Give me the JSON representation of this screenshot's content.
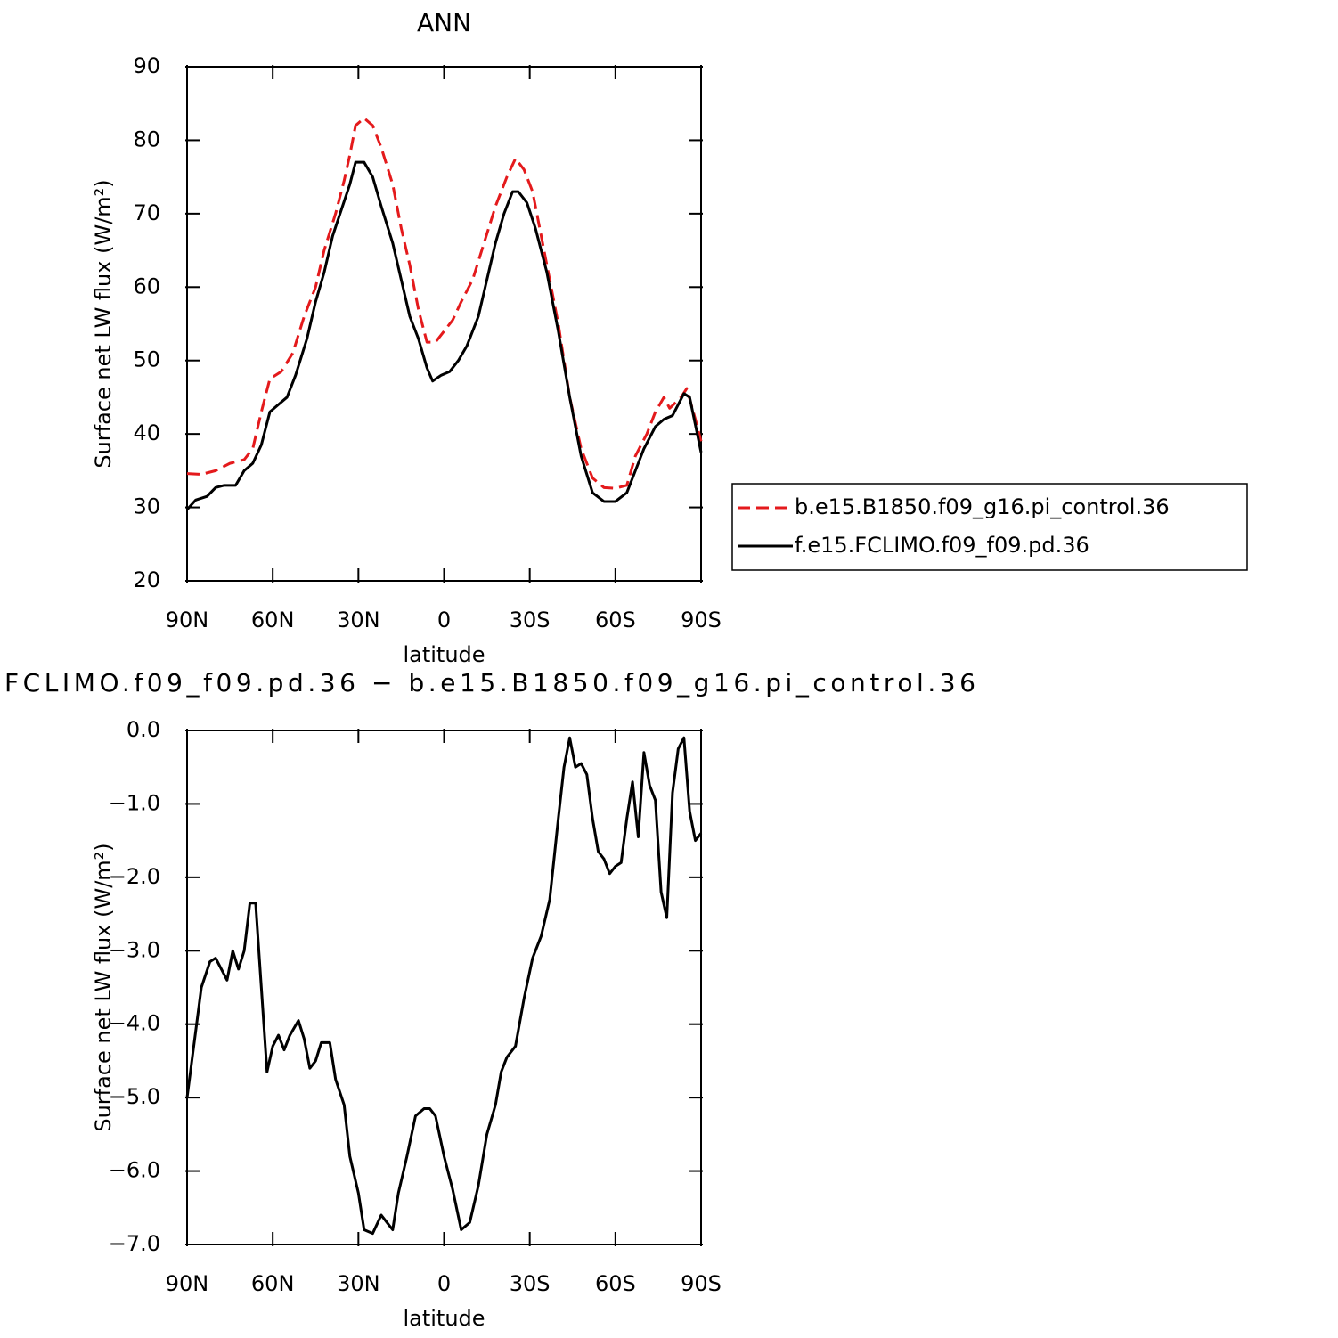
{
  "chart_data": [
    {
      "type": "line",
      "title": "ANN",
      "xlabel": "latitude",
      "ylabel": "Surface net LW flux (W/m²)",
      "xlim": [
        90,
        -90
      ],
      "xticks": [
        {
          "value": 90,
          "label": "90N"
        },
        {
          "value": 60,
          "label": "60N"
        },
        {
          "value": 30,
          "label": "30N"
        },
        0,
        {
          "value": -30,
          "label": "30S"
        },
        {
          "value": -60,
          "label": "60S"
        },
        {
          "value": -90,
          "label": "90S"
        }
      ],
      "ylim": [
        20,
        90
      ],
      "yticks": [
        20,
        30,
        40,
        50,
        60,
        70,
        80,
        90
      ],
      "legend": "right",
      "series": [
        {
          "name": "b.e15.B1850.f09_g16.pi_control.36",
          "color": "#e41a1c",
          "style": "dashed",
          "x": [
            90,
            85,
            80,
            75,
            70,
            67,
            64,
            61,
            57,
            53,
            49,
            45,
            42,
            38,
            35,
            33,
            31,
            28,
            25,
            22,
            18,
            15,
            12,
            9,
            6,
            3,
            0,
            -3,
            -6,
            -10,
            -14,
            -18,
            -22,
            -25,
            -28,
            -31,
            -35,
            -40,
            -44,
            -48,
            -52,
            -56,
            -60,
            -64,
            -67,
            -71,
            -74,
            -77,
            -79,
            -83,
            -85,
            -88,
            -90
          ],
          "values": [
            34.6,
            34.5,
            35,
            36,
            36.5,
            38,
            43,
            47.5,
            48.5,
            51,
            56,
            60,
            65,
            70,
            74.5,
            78,
            82,
            83,
            82,
            79,
            74,
            68,
            63,
            57,
            52.5,
            52.5,
            54,
            55.5,
            58,
            61,
            66,
            71,
            75,
            77.5,
            76,
            73,
            65,
            55,
            45,
            38,
            34,
            32.7,
            32.6,
            33,
            37,
            40,
            43,
            45,
            43.5,
            45,
            46.2,
            42,
            39
          ]
        },
        {
          "name": "f.e15.FCLIMO.f09_f09.pd.36",
          "color": "#000000",
          "style": "solid",
          "x": [
            90,
            87,
            83,
            80,
            77,
            73,
            70,
            67,
            64,
            61,
            58,
            55,
            52,
            48,
            45,
            42,
            39,
            36,
            33,
            31,
            28,
            25,
            22,
            18,
            15,
            12,
            9,
            6,
            4,
            1,
            -2,
            -5,
            -8,
            -12,
            -15,
            -18,
            -21,
            -24,
            -26,
            -29,
            -32,
            -36,
            -40,
            -44,
            -48,
            -52,
            -56,
            -60,
            -64,
            -67,
            -70,
            -74,
            -77,
            -80,
            -84,
            -86,
            -90
          ],
          "values": [
            29.7,
            31,
            31.5,
            32.7,
            33,
            33,
            35,
            36,
            38.5,
            43,
            44,
            45,
            48,
            53,
            58,
            62,
            67,
            70.5,
            74,
            77,
            77,
            75,
            71,
            66,
            61,
            56,
            53,
            49,
            47.2,
            48,
            48.5,
            50,
            52,
            56,
            61,
            66,
            70,
            73,
            73,
            71.5,
            68,
            62,
            54,
            45,
            37,
            32,
            30.8,
            30.8,
            32,
            35,
            38,
            41,
            42,
            42.5,
            45.5,
            45,
            37.5
          ]
        }
      ]
    },
    {
      "type": "line",
      "title": "FCLIMO.f09_f09.pd.36 − b.e15.B1850.f09_g16.pi_control.36",
      "xlabel": "latitude",
      "ylabel": "Surface net LW flux (W/m²)",
      "xlim": [
        90,
        -90
      ],
      "xticks": [
        {
          "value": 90,
          "label": "90N"
        },
        {
          "value": 60,
          "label": "60N"
        },
        {
          "value": 30,
          "label": "30N"
        },
        0,
        {
          "value": -30,
          "label": "30S"
        },
        {
          "value": -60,
          "label": "60S"
        },
        {
          "value": -90,
          "label": "90S"
        }
      ],
      "ylim": [
        -7,
        0
      ],
      "yticks": [
        {
          "value": -7,
          "label": "−7.0"
        },
        {
          "value": -6,
          "label": "−6.0"
        },
        {
          "value": -5,
          "label": "−5.0"
        },
        {
          "value": -4,
          "label": "−4.0"
        },
        {
          "value": -3,
          "label": "−3.0"
        },
        {
          "value": -2,
          "label": "−2.0"
        },
        {
          "value": -1,
          "label": "−1.0"
        },
        {
          "value": 0,
          "label": "0.0"
        }
      ],
      "series": [
        {
          "color": "#000000",
          "style": "solid",
          "x": [
            90,
            88,
            85,
            82,
            80,
            78,
            76,
            74,
            72,
            70,
            68,
            66,
            64,
            62,
            60,
            58,
            56,
            54,
            51,
            49,
            47,
            45,
            43,
            40,
            38,
            35,
            33,
            30,
            28,
            25,
            22,
            20,
            18,
            16,
            13,
            10,
            7,
            5,
            3,
            0,
            -3,
            -6,
            -9,
            -12,
            -15,
            -18,
            -20,
            -22,
            -25,
            -28,
            -31,
            -34,
            -37,
            -40,
            -42,
            -44,
            -46,
            -48,
            -50,
            -52,
            -54,
            -56,
            -58,
            -60,
            -62,
            -64,
            -66,
            -68,
            -70,
            -72,
            -74,
            -76,
            -78,
            -80,
            -82,
            -84,
            -86,
            -88,
            -90
          ],
          "values": [
            -5.0,
            -4.4,
            -3.5,
            -3.15,
            -3.1,
            -3.25,
            -3.4,
            -3.0,
            -3.25,
            -3.0,
            -2.35,
            -2.35,
            -3.5,
            -4.65,
            -4.3,
            -4.15,
            -4.35,
            -4.15,
            -3.95,
            -4.2,
            -4.6,
            -4.5,
            -4.25,
            -4.25,
            -4.75,
            -5.1,
            -5.8,
            -6.3,
            -6.8,
            -6.85,
            -6.6,
            -6.7,
            -6.8,
            -6.3,
            -5.8,
            -5.25,
            -5.15,
            -5.15,
            -5.25,
            -5.8,
            -6.25,
            -6.8,
            -6.7,
            -6.2,
            -5.5,
            -5.1,
            -4.65,
            -4.45,
            -4.3,
            -3.65,
            -3.1,
            -2.8,
            -2.3,
            -1.2,
            -0.5,
            -0.1,
            -0.5,
            -0.45,
            -0.6,
            -1.2,
            -1.65,
            -1.75,
            -1.95,
            -1.85,
            -1.8,
            -1.2,
            -0.7,
            -1.45,
            -0.3,
            -0.75,
            -0.95,
            -2.2,
            -2.55,
            -0.85,
            -0.25,
            -0.1,
            -1.1,
            -1.5,
            -1.4
          ]
        }
      ]
    }
  ]
}
